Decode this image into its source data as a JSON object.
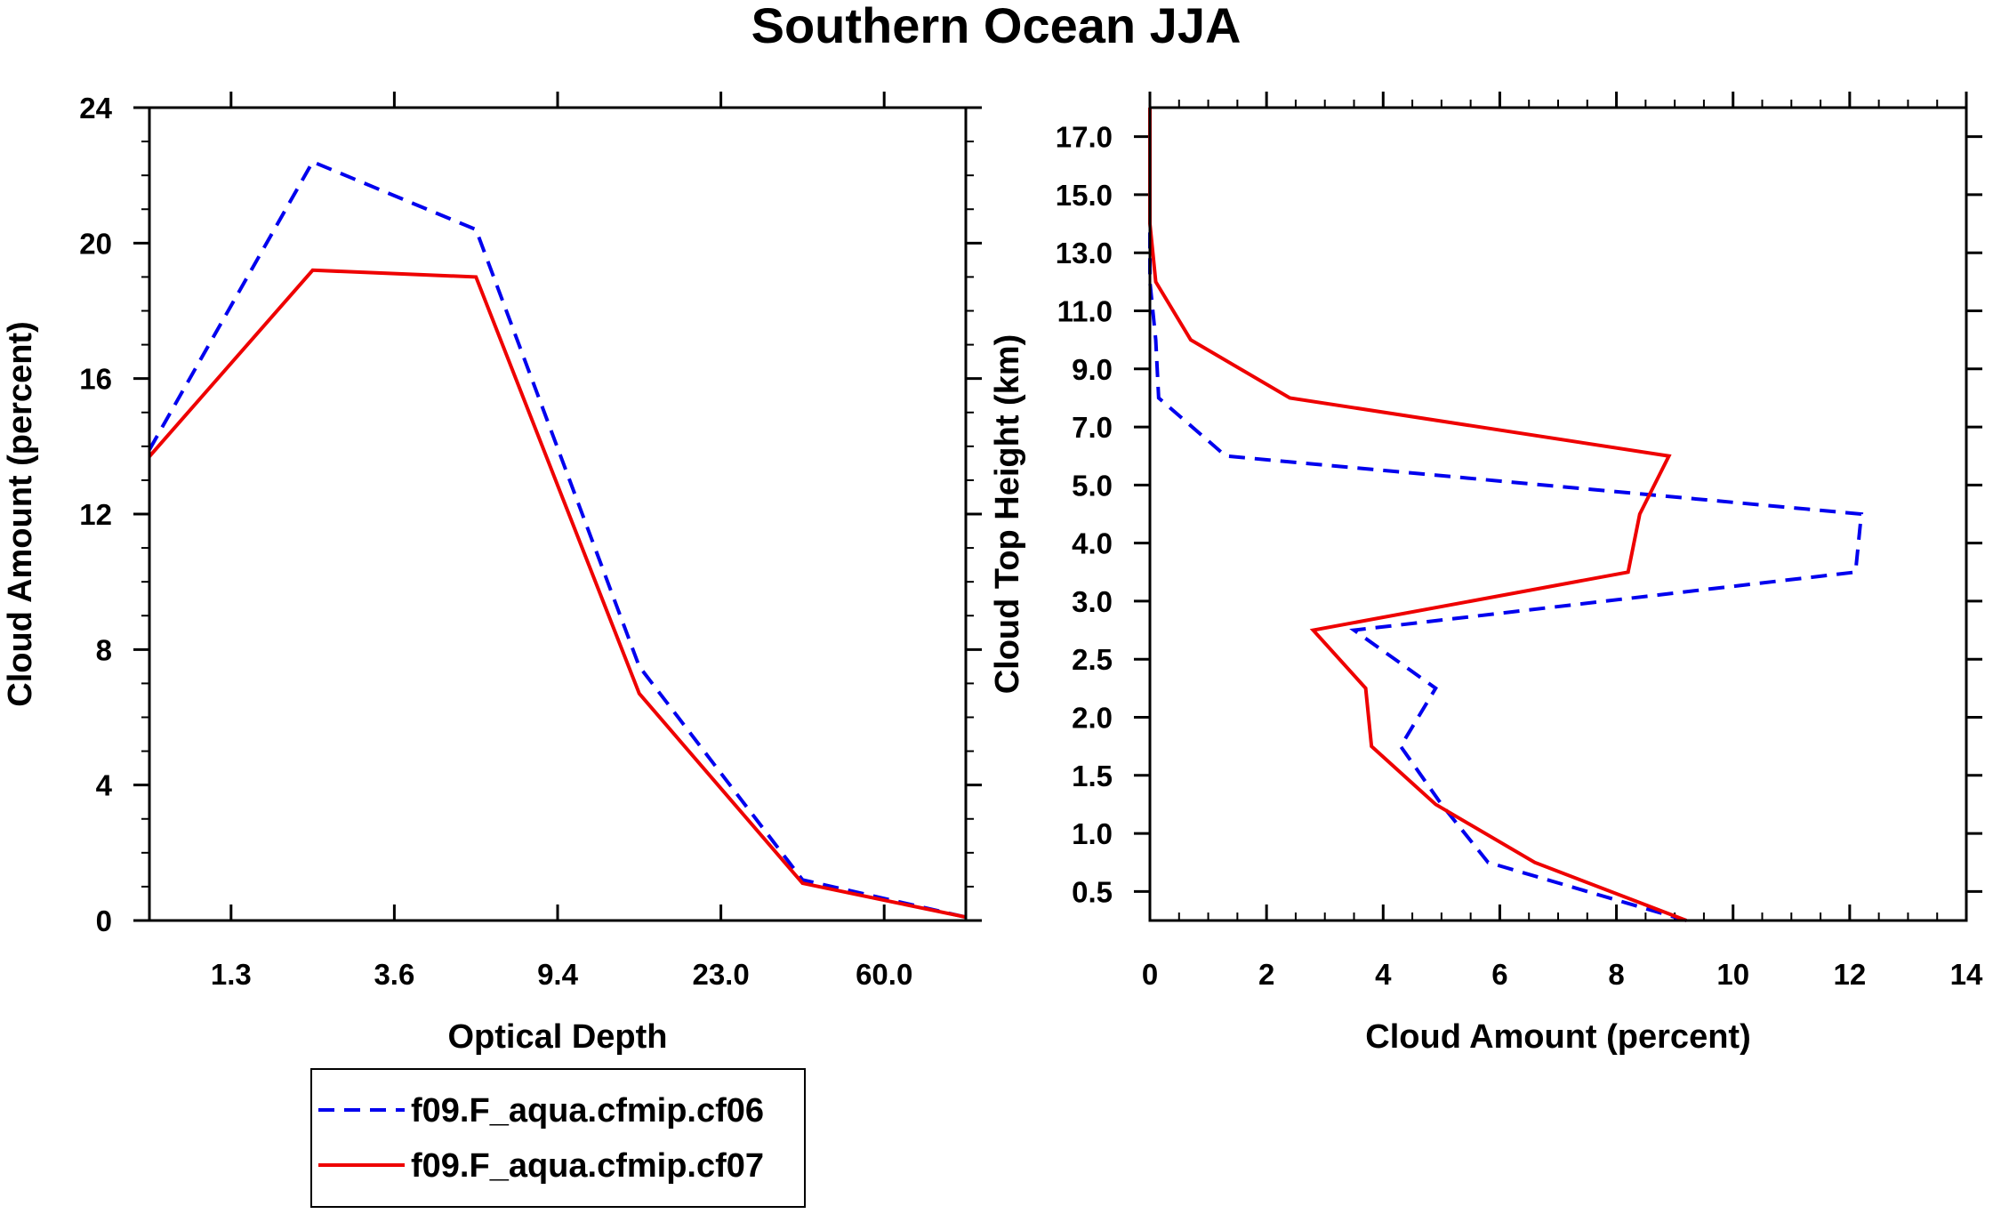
{
  "figure": {
    "title": "Southern Ocean JJA"
  },
  "legend": {
    "entries": [
      {
        "label": "f09.F_aqua.cfmip.cf06",
        "color": "#0000ee",
        "dash": "dashed"
      },
      {
        "label": "f09.F_aqua.cfmip.cf07",
        "color": "#ee0000",
        "dash": "solid"
      }
    ]
  },
  "chart_data": [
    {
      "type": "line",
      "title": "",
      "xlabel": "Optical Depth",
      "ylabel": "Cloud Amount (percent)",
      "x_index": [
        0,
        1,
        2,
        3,
        4,
        5
      ],
      "xticks": [
        "1.3",
        "3.6",
        "9.4",
        "23.0",
        "60.0"
      ],
      "yticks": [
        "0",
        "4",
        "8",
        "12",
        "16",
        "20",
        "24"
      ],
      "xlim": [
        0,
        5
      ],
      "ylim": [
        0,
        24
      ],
      "series": [
        {
          "name": "f09.F_aqua.cfmip.cf06",
          "color": "#0000ee",
          "dash": "dashed",
          "x": [
            0,
            1,
            2,
            3,
            4,
            5
          ],
          "values": [
            13.9,
            22.4,
            20.4,
            7.5,
            1.2,
            0.1
          ]
        },
        {
          "name": "f09.F_aqua.cfmip.cf07",
          "color": "#ee0000",
          "dash": "solid",
          "x": [
            0,
            1,
            2,
            3,
            4,
            5
          ],
          "values": [
            13.7,
            19.2,
            19.0,
            6.7,
            1.1,
            0.1
          ]
        }
      ]
    },
    {
      "type": "line",
      "title": "",
      "xlabel": "Cloud Amount (percent)",
      "ylabel": "Cloud Top Height (km)",
      "xticks": [
        "0",
        "2",
        "4",
        "6",
        "8",
        "10",
        "12",
        "14"
      ],
      "xlim": [
        0,
        14
      ],
      "yticks": [
        "0.5",
        "1.0",
        "1.5",
        "2.0",
        "2.5",
        "3.0",
        "4.0",
        "5.0",
        "7.0",
        "9.0",
        "11.0",
        "13.0",
        "15.0",
        "17.0"
      ],
      "ylim_index": [
        0,
        14
      ],
      "y_index": [
        0,
        1,
        2,
        3,
        4,
        5,
        6,
        7,
        8,
        9,
        10,
        11,
        12,
        13,
        14
      ],
      "series": [
        {
          "name": "f09.F_aqua.cfmip.cf06",
          "color": "#0000ee",
          "dash": "dashed",
          "values": [
            9.2,
            5.8,
            5.0,
            4.3,
            4.9,
            3.5,
            12.1,
            12.2,
            1.3,
            0.15,
            0.1,
            0.0,
            0.0,
            0.0,
            0.0
          ]
        },
        {
          "name": "f09.F_aqua.cfmip.cf07",
          "color": "#ee0000",
          "dash": "solid",
          "values": [
            9.2,
            6.6,
            4.9,
            3.8,
            3.7,
            2.8,
            8.2,
            8.4,
            8.9,
            2.4,
            0.7,
            0.1,
            0.0,
            0.0,
            0.0
          ]
        }
      ]
    }
  ]
}
